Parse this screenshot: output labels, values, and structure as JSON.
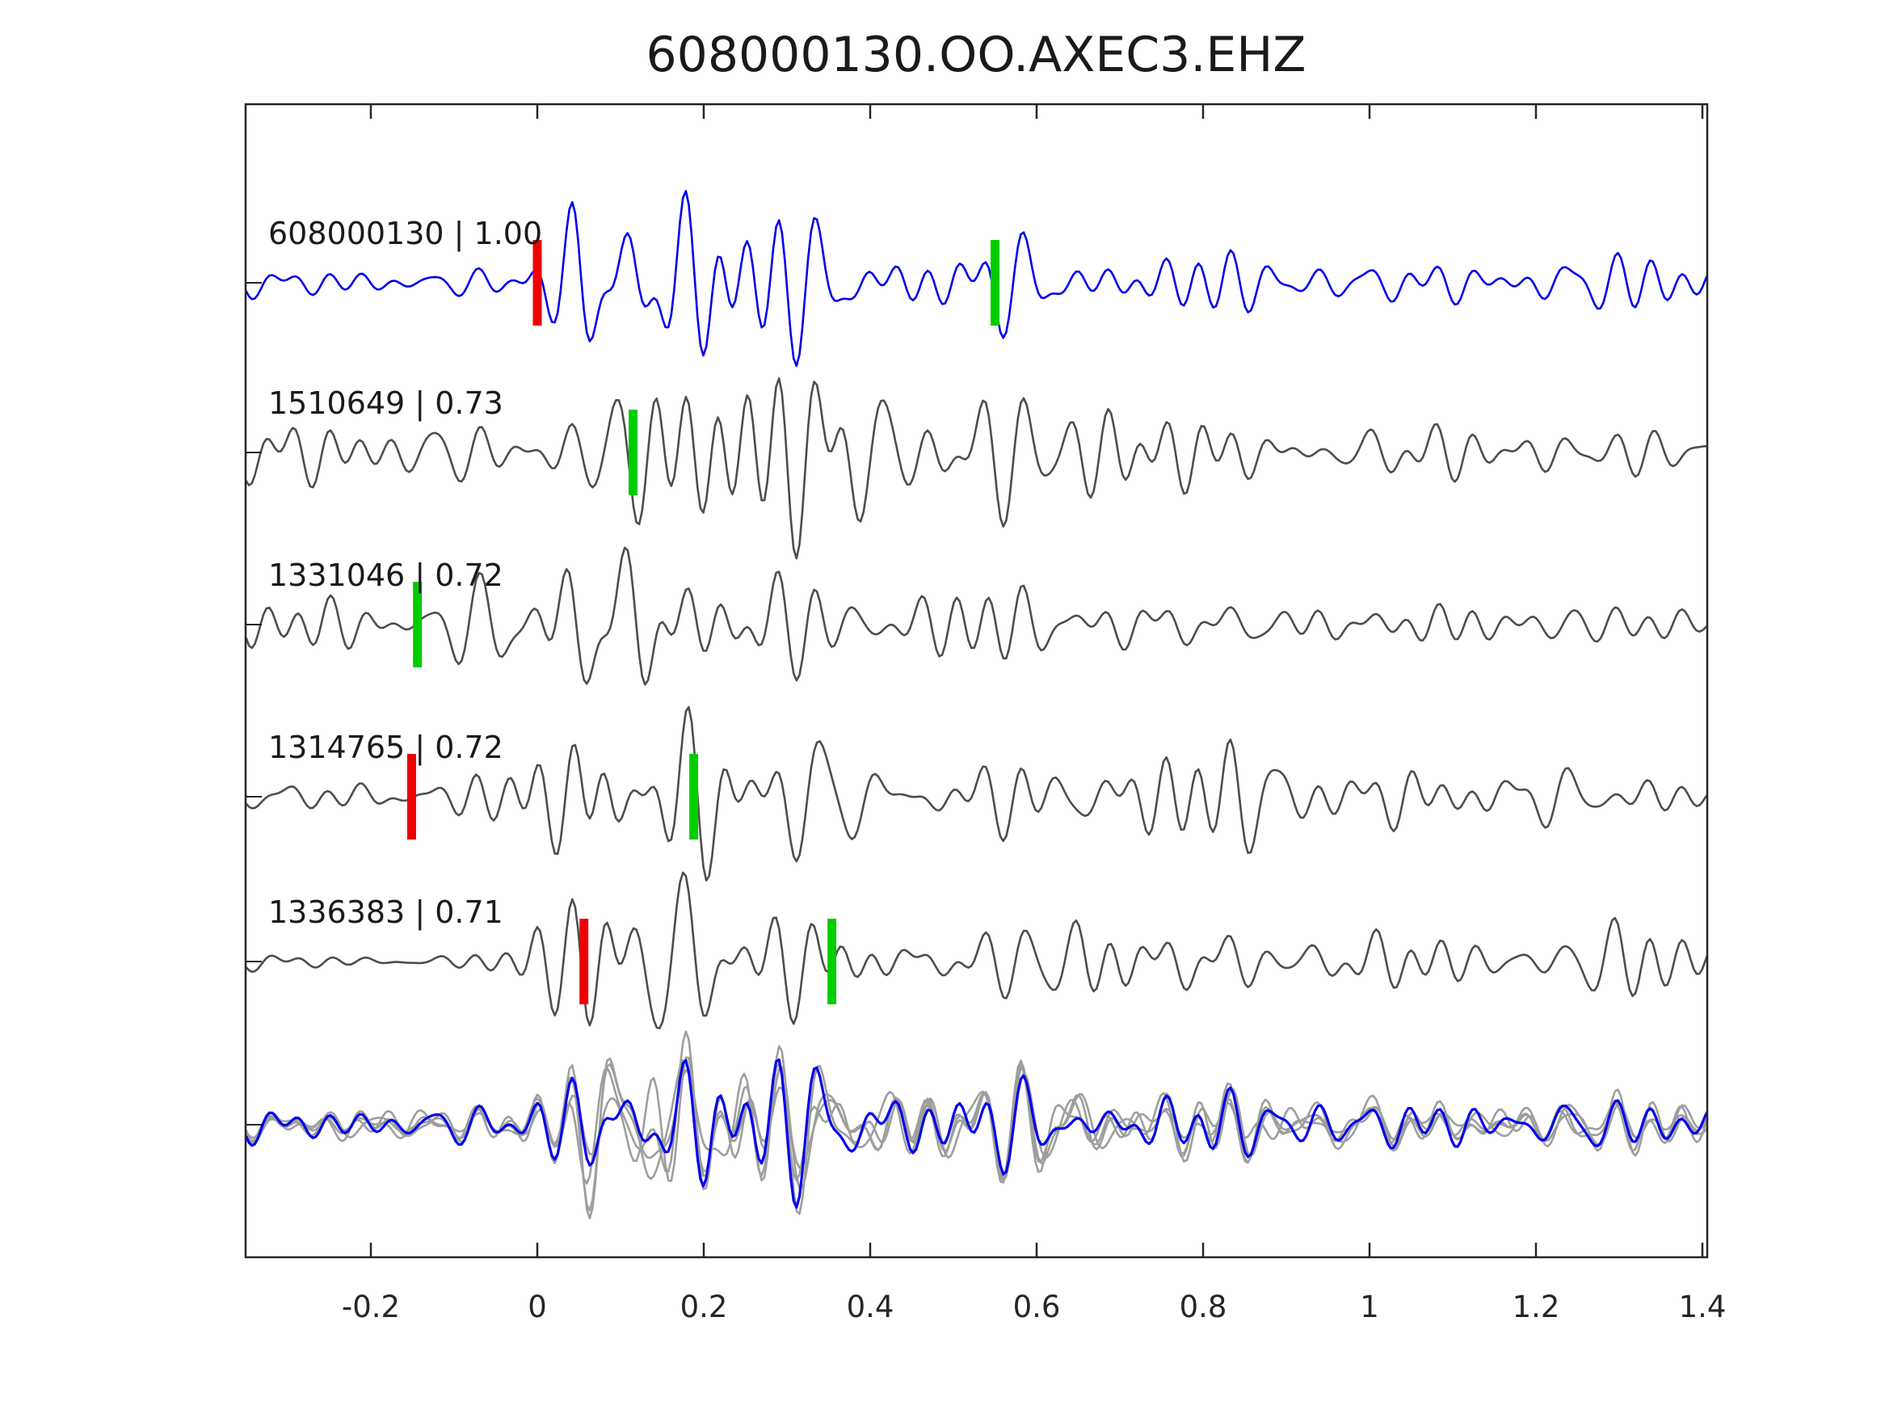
{
  "title": "608000130.OO.AXEC3.EHZ",
  "colors": {
    "template_blue": "#0000ee",
    "trace_gray": "#4d4d4d",
    "overlay_gray": "#9e9e9e",
    "pick_red": "#ee0000",
    "pick_green": "#00cc00",
    "axis": "#262626"
  },
  "chart_data": {
    "type": "line",
    "title": "608000130.OO.AXEC3.EHZ",
    "xlabel": "",
    "ylabel": "",
    "xlim": [
      -0.35,
      1.41
    ],
    "x_ticks": [
      -0.2,
      0,
      0.2,
      0.4,
      0.6,
      0.8,
      1,
      1.2,
      1.4
    ],
    "x_tick_labels": [
      "-0.2",
      "0",
      "0.2",
      "0.4",
      "0.6",
      "0.8",
      "1",
      "1.2",
      "1.4"
    ],
    "grid": false,
    "legend": "none",
    "traces": [
      {
        "id": "608000130",
        "correlation": "1.00",
        "label": "608000130 | 1.00",
        "color_key": "template_blue",
        "seed": 11,
        "picks": [
          {
            "color": "red",
            "t": 0.0
          },
          {
            "color": "green",
            "t": 0.55
          }
        ],
        "envelope": [
          [
            -0.35,
            13
          ],
          [
            -0.12,
            13
          ],
          [
            -0.03,
            16
          ],
          [
            0.02,
            55
          ],
          [
            0.05,
            110
          ],
          [
            0.1,
            125
          ],
          [
            0.17,
            115
          ],
          [
            0.25,
            80
          ],
          [
            0.35,
            60
          ],
          [
            0.47,
            48
          ],
          [
            0.57,
            50
          ],
          [
            0.68,
            38
          ],
          [
            0.8,
            34
          ],
          [
            0.95,
            26
          ],
          [
            1.1,
            23
          ],
          [
            1.22,
            28
          ],
          [
            1.32,
            30
          ],
          [
            1.41,
            24
          ]
        ]
      },
      {
        "id": "1510649",
        "correlation": "0.73",
        "label": "1510649 | 0.73",
        "color_key": "trace_gray",
        "seed": 12,
        "picks": [
          {
            "color": "green",
            "t": 0.115
          }
        ],
        "envelope": [
          [
            -0.35,
            40
          ],
          [
            -0.27,
            30
          ],
          [
            -0.18,
            24
          ],
          [
            -0.08,
            26
          ],
          [
            0.0,
            30
          ],
          [
            0.05,
            60
          ],
          [
            0.09,
            110
          ],
          [
            0.15,
            115
          ],
          [
            0.24,
            105
          ],
          [
            0.33,
            88
          ],
          [
            0.44,
            75
          ],
          [
            0.55,
            65
          ],
          [
            0.66,
            58
          ],
          [
            0.78,
            45
          ],
          [
            0.9,
            33
          ],
          [
            1.02,
            27
          ],
          [
            1.15,
            23
          ],
          [
            1.3,
            24
          ],
          [
            1.41,
            26
          ]
        ]
      },
      {
        "id": "1331046",
        "correlation": "0.72",
        "label": "1331046 | 0.72",
        "color_key": "trace_gray",
        "seed": 13,
        "picks": [
          {
            "color": "green",
            "t": -0.144
          }
        ],
        "envelope": [
          [
            -0.35,
            24
          ],
          [
            -0.25,
            28
          ],
          [
            -0.15,
            32
          ],
          [
            -0.07,
            42
          ],
          [
            -0.01,
            65
          ],
          [
            0.04,
            85
          ],
          [
            0.1,
            88
          ],
          [
            0.17,
            70
          ],
          [
            0.26,
            55
          ],
          [
            0.36,
            48
          ],
          [
            0.47,
            44
          ],
          [
            0.58,
            38
          ],
          [
            0.7,
            33
          ],
          [
            0.82,
            30
          ],
          [
            0.95,
            26
          ],
          [
            1.1,
            22
          ],
          [
            1.25,
            20
          ],
          [
            1.41,
            19
          ]
        ]
      },
      {
        "id": "1314765",
        "correlation": "0.72",
        "label": "1314765 | 0.72",
        "color_key": "trace_gray",
        "seed": 14,
        "picks": [
          {
            "color": "red",
            "t": -0.151
          },
          {
            "color": "green",
            "t": 0.188
          }
        ],
        "envelope": [
          [
            -0.35,
            11
          ],
          [
            -0.22,
            14
          ],
          [
            -0.12,
            20
          ],
          [
            -0.04,
            30
          ],
          [
            0.02,
            55
          ],
          [
            0.07,
            95
          ],
          [
            0.12,
            100
          ],
          [
            0.2,
            88
          ],
          [
            0.3,
            62
          ],
          [
            0.42,
            48
          ],
          [
            0.53,
            44
          ],
          [
            0.63,
            50
          ],
          [
            0.73,
            58
          ],
          [
            0.83,
            48
          ],
          [
            0.95,
            34
          ],
          [
            1.08,
            30
          ],
          [
            1.2,
            30
          ],
          [
            1.32,
            34
          ],
          [
            1.41,
            26
          ]
        ]
      },
      {
        "id": "1336383",
        "correlation": "0.71",
        "label": "1336383 | 0.71",
        "color_key": "trace_gray",
        "seed": 15,
        "picks": [
          {
            "color": "red",
            "t": 0.056
          },
          {
            "color": "green",
            "t": 0.354
          }
        ],
        "envelope": [
          [
            -0.35,
            6
          ],
          [
            -0.22,
            8
          ],
          [
            -0.12,
            13
          ],
          [
            -0.03,
            22
          ],
          [
            0.03,
            55
          ],
          [
            0.08,
            100
          ],
          [
            0.14,
            95
          ],
          [
            0.22,
            68
          ],
          [
            0.32,
            50
          ],
          [
            0.44,
            42
          ],
          [
            0.56,
            40
          ],
          [
            0.68,
            46
          ],
          [
            0.8,
            40
          ],
          [
            0.92,
            32
          ],
          [
            1.05,
            28
          ],
          [
            1.18,
            28
          ],
          [
            1.3,
            32
          ],
          [
            1.41,
            28
          ]
        ]
      }
    ],
    "overlay": {
      "gray_count": 4,
      "gray_seeds": [
        21,
        22,
        23,
        24
      ],
      "blue_seed": 25,
      "gray_color_key": "overlay_gray",
      "blue_color_key": "template_blue",
      "envelope": [
        [
          -0.35,
          17
        ],
        [
          -0.22,
          19
        ],
        [
          -0.12,
          17
        ],
        [
          -0.03,
          22
        ],
        [
          0.03,
          50
        ],
        [
          0.08,
          90
        ],
        [
          0.14,
          92
        ],
        [
          0.22,
          78
        ],
        [
          0.32,
          62
        ],
        [
          0.44,
          52
        ],
        [
          0.56,
          46
        ],
        [
          0.68,
          42
        ],
        [
          0.8,
          36
        ],
        [
          0.92,
          30
        ],
        [
          1.05,
          25
        ],
        [
          1.18,
          24
        ],
        [
          1.3,
          27
        ],
        [
          1.41,
          25
        ]
      ]
    }
  }
}
